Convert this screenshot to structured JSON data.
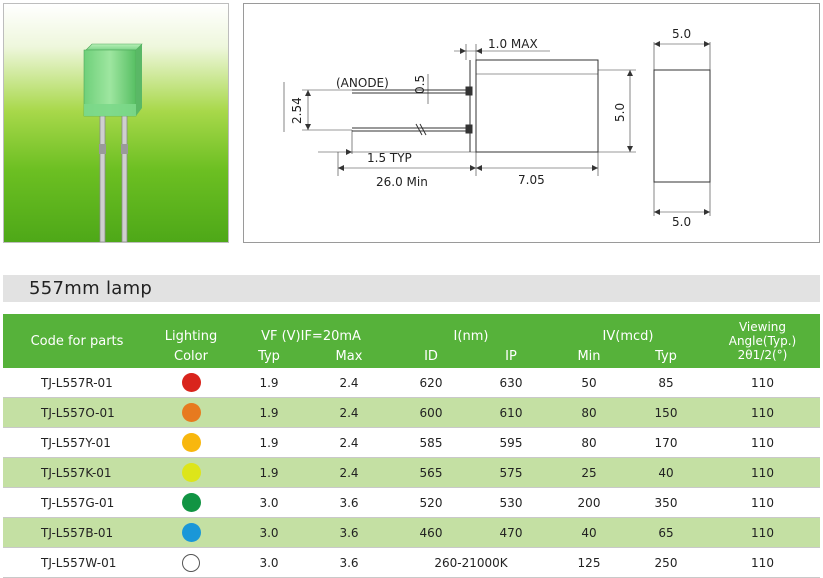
{
  "drawing": {
    "anode_label": "(ANODE)",
    "dim_lead_gap": "0.5",
    "dim_pitch": "2.54",
    "dim_flange": "1.0 MAX",
    "dim_lead_bend": "1.5 TYP",
    "dim_lead_length": "26.0 Min",
    "dim_body_length": "7.05",
    "dim_body_height": "5.0",
    "dim_end_width_top": "5.0",
    "dim_end_width_bottom": "5.0"
  },
  "section": {
    "title": "557mm lamp"
  },
  "table": {
    "header": {
      "code": "Code for parts",
      "color_line1": "Lighting",
      "color_line2": "Color",
      "vf": "VF (V)IF=20mA",
      "vf_typ": "Typ",
      "vf_max": "Max",
      "i_nm": "I(nm)",
      "id": "ID",
      "ip": "IP",
      "iv": "IV(mcd)",
      "iv_min": "Min",
      "iv_typ": "Typ",
      "angle_line1": "Viewing",
      "angle_line2": "Angle(Typ.)",
      "angle_line3": "2θ1/2(°)"
    },
    "rows": [
      {
        "code": "TJ-L557R-01",
        "color": "#d9241c",
        "vf_typ": "1.9",
        "vf_max": "2.4",
        "id": "620",
        "ip": "630",
        "iv_min": "50",
        "iv_typ": "85",
        "angle": "110"
      },
      {
        "code": "TJ-L557O-01",
        "color": "#e77a1f",
        "vf_typ": "1.9",
        "vf_max": "2.4",
        "id": "600",
        "ip": "610",
        "iv_min": "80",
        "iv_typ": "150",
        "angle": "110"
      },
      {
        "code": "TJ-L557Y-01",
        "color": "#f8b70e",
        "vf_typ": "1.9",
        "vf_max": "2.4",
        "id": "585",
        "ip": "595",
        "iv_min": "80",
        "iv_typ": "170",
        "angle": "110"
      },
      {
        "code": "TJ-L557K-01",
        "color": "#dde51a",
        "vf_typ": "1.9",
        "vf_max": "2.4",
        "id": "565",
        "ip": "575",
        "iv_min": "25",
        "iv_typ": "40",
        "angle": "110"
      },
      {
        "code": "TJ-L557G-01",
        "color": "#119443",
        "vf_typ": "3.0",
        "vf_max": "3.6",
        "id": "520",
        "ip": "530",
        "iv_min": "200",
        "iv_typ": "350",
        "angle": "110"
      },
      {
        "code": "TJ-L557B-01",
        "color": "#1a97d8",
        "vf_typ": "3.0",
        "vf_max": "3.6",
        "id": "460",
        "ip": "470",
        "iv_min": "40",
        "iv_typ": "65",
        "angle": "110"
      },
      {
        "code": "TJ-L557W-01",
        "color": "#ffffff",
        "vf_typ": "3.0",
        "vf_max": "3.6",
        "wavelength": "260-21000K",
        "iv_min": "125",
        "iv_typ": "250",
        "angle": "110"
      }
    ]
  }
}
